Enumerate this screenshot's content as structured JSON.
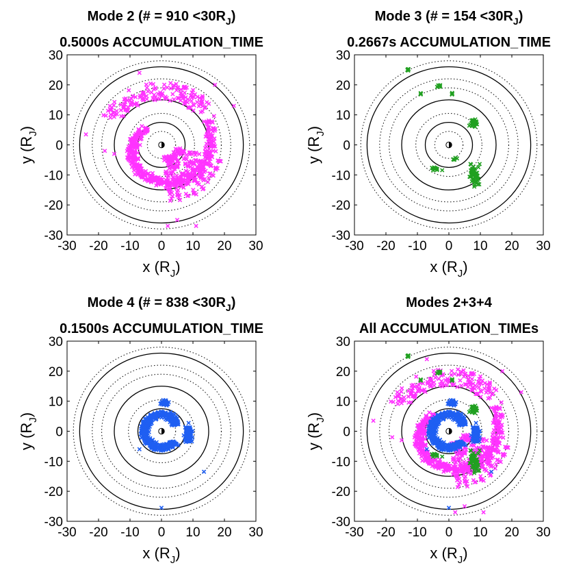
{
  "colors": {
    "mode2": "#ff33ff",
    "mode3": "#21a021",
    "mode4": "#1f5ff2",
    "axes": "#000000"
  },
  "chart_data": [
    {
      "type": "scatter",
      "title_line1": "Mode 2 (# = 910 <30R",
      "title_line1_sub": "J",
      "title_line1_end": ")",
      "title_line2": "0.5000s ACCUMULATION_TIME",
      "xlabel": "x (R",
      "xlabel_sub": "J",
      "xlabel_end": ")",
      "ylabel": "y (R",
      "ylabel_sub": "J",
      "ylabel_end": ")",
      "xlim": [
        -30,
        30
      ],
      "ylim": [
        -30,
        30
      ],
      "ticks": [
        "-30",
        "-20",
        "-10",
        "0",
        "10",
        "20",
        "30"
      ],
      "series": [
        {
          "color": "#ff33ff",
          "marker": "x"
        }
      ],
      "rings_solid": [
        7.5,
        15,
        26
      ],
      "rings_dotted": [
        4.5,
        10.5,
        19,
        22,
        28
      ],
      "point_count": 910
    },
    {
      "type": "scatter",
      "title_line1": "Mode 3 (# = 154 <30R",
      "title_line1_sub": "J",
      "title_line1_end": ")",
      "title_line2": "0.2667s ACCUMULATION_TIME",
      "xlabel": "x (R",
      "xlabel_sub": "J",
      "xlabel_end": ")",
      "ylabel": "y (R",
      "ylabel_sub": "J",
      "ylabel_end": ")",
      "xlim": [
        -30,
        30
      ],
      "ylim": [
        -30,
        30
      ],
      "ticks": [
        "-30",
        "-20",
        "-10",
        "0",
        "10",
        "20",
        "30"
      ],
      "series": [
        {
          "color": "#21a021",
          "marker": "x"
        }
      ],
      "rings_solid": [
        7.5,
        15,
        26
      ],
      "rings_dotted": [
        4.5,
        10.5,
        19,
        22,
        28
      ],
      "point_count": 154
    },
    {
      "type": "scatter",
      "title_line1": "Mode 4 (# = 838 <30R",
      "title_line1_sub": "J",
      "title_line1_end": ")",
      "title_line2": "0.1500s ACCUMULATION_TIME",
      "xlabel": "x (R",
      "xlabel_sub": "J",
      "xlabel_end": ")",
      "ylabel": "y (R",
      "ylabel_sub": "J",
      "ylabel_end": ")",
      "xlim": [
        -30,
        30
      ],
      "ylim": [
        -30,
        30
      ],
      "ticks": [
        "-30",
        "-20",
        "-10",
        "0",
        "10",
        "20",
        "30"
      ],
      "series": [
        {
          "color": "#1f5ff2",
          "marker": "x"
        }
      ],
      "rings_solid": [
        7.5,
        15,
        26
      ],
      "rings_dotted": [
        4.5,
        10.5,
        19,
        22,
        28
      ],
      "point_count": 838
    },
    {
      "type": "scatter",
      "title_line1": "Modes 2+3+4",
      "title_line1_sub": "",
      "title_line1_end": "",
      "title_line2": "All ACCUMULATION_TIMEs",
      "xlabel": "x (R",
      "xlabel_sub": "J",
      "xlabel_end": ")",
      "ylabel": "y (R",
      "ylabel_sub": "J",
      "ylabel_end": ")",
      "xlim": [
        -30,
        30
      ],
      "ylim": [
        -30,
        30
      ],
      "ticks": [
        "-30",
        "-20",
        "-10",
        "0",
        "10",
        "20",
        "30"
      ],
      "series": [
        {
          "color": "#ff33ff",
          "marker": "x"
        },
        {
          "color": "#21a021",
          "marker": "x"
        },
        {
          "color": "#1f5ff2",
          "marker": "x"
        }
      ],
      "rings_solid": [
        7.5,
        15,
        26
      ],
      "rings_dotted": [
        4.5,
        10.5,
        19,
        22,
        28
      ]
    }
  ]
}
